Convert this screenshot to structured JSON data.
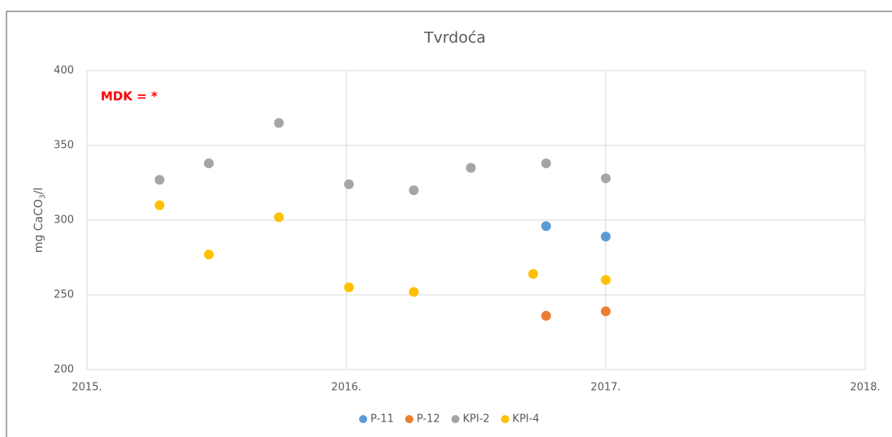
{
  "chart_data": {
    "type": "scatter",
    "title": "Tvrdoća",
    "y_label": [
      "mg CaCO",
      "3",
      "/l"
    ],
    "annotation": "MDK = *",
    "xlim": [
      2015,
      2018
    ],
    "xticks": [
      {
        "value": 2015,
        "label": "2015."
      },
      {
        "value": 2016,
        "label": "2016."
      },
      {
        "value": 2017,
        "label": "2017."
      },
      {
        "value": 2018,
        "label": "2018."
      }
    ],
    "ylim": [
      200,
      400
    ],
    "yticks": [
      200,
      250,
      300,
      350,
      400
    ],
    "grid": true,
    "legend": "bottom",
    "series": [
      {
        "name": "P-11",
        "color": "#5b9bd5",
        "x": [
          2016.77,
          2017.0
        ],
        "values": [
          296,
          289
        ]
      },
      {
        "name": "P-12",
        "color": "#ed7d31",
        "x": [
          2016.77,
          2017.0
        ],
        "values": [
          236,
          239
        ]
      },
      {
        "name": "KPI-2",
        "color": "#a5a5a5",
        "x": [
          2015.28,
          2015.47,
          2015.74,
          2016.01,
          2016.26,
          2016.48,
          2016.77,
          2017.0
        ],
        "values": [
          327,
          338,
          365,
          324,
          320,
          335,
          338,
          328
        ]
      },
      {
        "name": "KPI-4",
        "color": "#ffc000",
        "x": [
          2015.28,
          2015.47,
          2015.74,
          2016.01,
          2016.26,
          2016.72,
          2017.0
        ],
        "values": [
          310,
          277,
          302,
          255,
          252,
          264,
          260
        ]
      }
    ]
  }
}
